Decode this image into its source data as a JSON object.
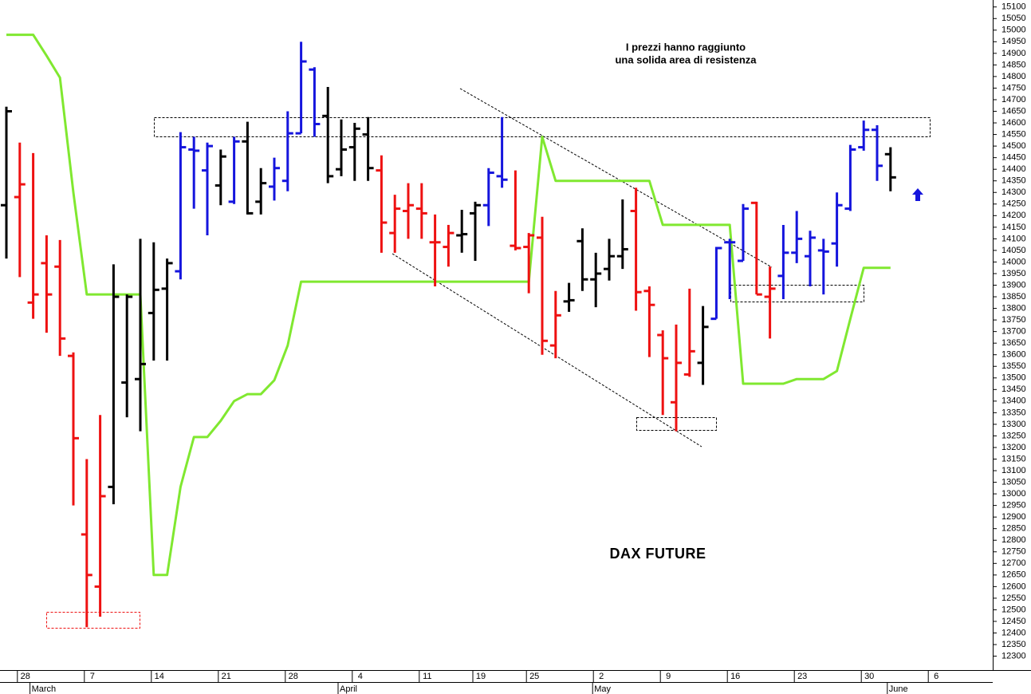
{
  "chart_data": {
    "type": "ohlc",
    "title": "DAX FUTURE",
    "annotation": [
      "I prezzi hanno raggiunto",
      "una solida area di resistenza"
    ],
    "categories": [
      null,
      "28",
      null,
      null,
      null,
      null,
      "7",
      null,
      null,
      null,
      null,
      "14",
      null,
      null,
      null,
      null,
      "21",
      null,
      null,
      null,
      null,
      "28",
      null,
      null,
      null,
      null,
      "4",
      null,
      null,
      null,
      null,
      "11",
      null,
      null,
      null,
      "19",
      null,
      null,
      null,
      "25",
      null,
      null,
      null,
      null,
      "2",
      null,
      null,
      null,
      null,
      "9",
      null,
      null,
      null,
      null,
      "16",
      null,
      null,
      null,
      null,
      "23",
      null,
      null,
      null,
      null,
      "30",
      null,
      null,
      null,
      null,
      "6"
    ],
    "months": [
      null,
      null,
      "March",
      null,
      null,
      null,
      null,
      null,
      null,
      null,
      null,
      null,
      null,
      null,
      null,
      null,
      null,
      null,
      null,
      null,
      null,
      null,
      null,
      null,
      null,
      "April",
      null,
      null,
      null,
      null,
      null,
      null,
      null,
      null,
      null,
      null,
      null,
      null,
      null,
      null,
      null,
      null,
      null,
      null,
      "May",
      null,
      null,
      null,
      null,
      null,
      null,
      null,
      null,
      null,
      null,
      null,
      null,
      null,
      null,
      null,
      null,
      null,
      null,
      null,
      null,
      null,
      "June",
      null,
      null,
      null
    ],
    "open": [
      14245,
      14280,
      13825,
      13995,
      13980,
      13595,
      12825,
      12600,
      13030,
      13480,
      13495,
      13780,
      13885,
      13960,
      14485,
      14395,
      14330,
      14260,
      14520,
      14260,
      14325,
      14350,
      14555,
      14830,
      14630,
      14400,
      14495,
      14550,
      14395,
      14125,
      14220,
      14230,
      14085,
      14065,
      14115,
      14210,
      14245,
      14370,
      14070,
      14065,
      14105,
      13640,
      13830,
      14090,
      13925,
      13970,
      14025,
      14220,
      13875,
      13685,
      13395,
      13515,
      13565,
      13755,
      14085,
      14005,
      14255,
      13850,
      13940,
      14040,
      14025,
      14050,
      14080,
      14230,
      14495,
      14570,
      14465,
      null,
      null,
      null
    ],
    "high": [
      14670,
      14515,
      14470,
      14115,
      14095,
      13610,
      13150,
      13340,
      13990,
      13860,
      14100,
      14085,
      14015,
      14560,
      14540,
      14515,
      14485,
      14540,
      14605,
      14405,
      14450,
      14650,
      14950,
      14840,
      14755,
      14615,
      14600,
      14625,
      14460,
      14290,
      14340,
      14340,
      14205,
      14160,
      14225,
      14260,
      14405,
      14625,
      14395,
      14125,
      14195,
      13875,
      13910,
      14145,
      14040,
      14100,
      14270,
      14320,
      13895,
      13705,
      13730,
      13885,
      13810,
      14065,
      14100,
      14250,
      14260,
      13980,
      14160,
      14220,
      14135,
      14100,
      14300,
      14505,
      14610,
      14590,
      14495,
      null,
      null,
      null
    ],
    "low": [
      14015,
      13935,
      13755,
      13695,
      13595,
      12950,
      12425,
      12470,
      12955,
      13330,
      13270,
      13575,
      13575,
      13925,
      14230,
      14115,
      14245,
      14250,
      14205,
      14205,
      14265,
      14305,
      14555,
      14540,
      14340,
      14370,
      14350,
      14350,
      14040,
      14040,
      14100,
      14100,
      13895,
      13980,
      14040,
      14005,
      14155,
      14320,
      14050,
      13865,
      13600,
      13585,
      13785,
      13875,
      13805,
      13920,
      13970,
      13790,
      13590,
      13340,
      13270,
      13505,
      13470,
      13755,
      13840,
      14005,
      13860,
      13670,
      13840,
      13995,
      13895,
      13860,
      13980,
      14220,
      14480,
      14350,
      14305,
      null,
      null,
      null
    ],
    "close": [
      14650,
      14335,
      13860,
      13860,
      13670,
      13240,
      12650,
      12990,
      13850,
      13850,
      13560,
      13880,
      13995,
      14495,
      14480,
      14500,
      14455,
      14520,
      14210,
      14340,
      14405,
      14555,
      14865,
      14595,
      14370,
      14485,
      14575,
      14405,
      14170,
      14230,
      14245,
      14210,
      14085,
      14125,
      14120,
      14245,
      14385,
      14355,
      14060,
      14115,
      13660,
      13770,
      13835,
      13925,
      13950,
      14025,
      14055,
      13870,
      13815,
      13585,
      13565,
      13615,
      13720,
      14060,
      14085,
      14230,
      13860,
      13885,
      14040,
      14100,
      14105,
      14045,
      14245,
      14485,
      14570,
      14415,
      14365,
      null,
      null,
      null
    ],
    "colors": [
      "#000000",
      "#ee1111",
      "#ee1111",
      "#ee1111",
      "#ee1111",
      "#ee1111",
      "#ee1111",
      "#ee1111",
      "#000000",
      "#000000",
      "#000000",
      "#000000",
      "#000000",
      "#1515dd",
      "#1515dd",
      "#1515dd",
      "#000000",
      "#1515dd",
      "#000000",
      "#000000",
      "#1515dd",
      "#1515dd",
      "#1515dd",
      "#1515dd",
      "#000000",
      "#000000",
      "#000000",
      "#000000",
      "#ee1111",
      "#ee1111",
      "#ee1111",
      "#ee1111",
      "#ee1111",
      "#ee1111",
      "#000000",
      "#000000",
      "#1515dd",
      "#1515dd",
      "#ee1111",
      "#ee1111",
      "#ee1111",
      "#ee1111",
      "#000000",
      "#000000",
      "#000000",
      "#000000",
      "#000000",
      "#ee1111",
      "#ee1111",
      "#ee1111",
      "#ee1111",
      "#ee1111",
      "#000000",
      "#1515dd",
      "#1515dd",
      "#1515dd",
      "#ee1111",
      "#ee1111",
      "#1515dd",
      "#1515dd",
      "#1515dd",
      "#1515dd",
      "#1515dd",
      "#1515dd",
      "#1515dd",
      "#1515dd",
      "#000000",
      null,
      null,
      null
    ],
    "line": {
      "color": "#80e830",
      "values": [
        14980,
        14980,
        14980,
        14890,
        14795,
        14300,
        13860,
        13860,
        13860,
        13860,
        13860,
        12650,
        12650,
        13030,
        13245,
        13245,
        13315,
        13400,
        13430,
        13430,
        13490,
        13640,
        13915,
        13915,
        13915,
        13915,
        13915,
        13915,
        13915,
        13915,
        13915,
        13915,
        13915,
        13915,
        13915,
        13915,
        13915,
        13915,
        13915,
        13915,
        14540,
        14350,
        14350,
        14350,
        14350,
        14350,
        14350,
        14350,
        14350,
        14160,
        14160,
        14160,
        14160,
        14160,
        14160,
        13475,
        13475,
        13475,
        13475,
        13495,
        13495,
        13495,
        13530,
        13755,
        13975,
        13975,
        13975,
        null,
        null,
        null
      ]
    },
    "ylim": [
      12240,
      15130
    ],
    "yticks": [
      12300,
      12350,
      12400,
      12450,
      12500,
      12550,
      12600,
      12650,
      12700,
      12750,
      12800,
      12850,
      12900,
      12950,
      13000,
      13050,
      13100,
      13150,
      13200,
      13250,
      13300,
      13350,
      13400,
      13450,
      13500,
      13550,
      13600,
      13650,
      13700,
      13750,
      13800,
      13850,
      13900,
      13950,
      14000,
      14050,
      14100,
      14150,
      14200,
      14250,
      14300,
      14350,
      14400,
      14450,
      14500,
      14550,
      14600,
      14650,
      14700,
      14750,
      14800,
      14850,
      14900,
      14950,
      15000,
      15050,
      15100
    ]
  }
}
